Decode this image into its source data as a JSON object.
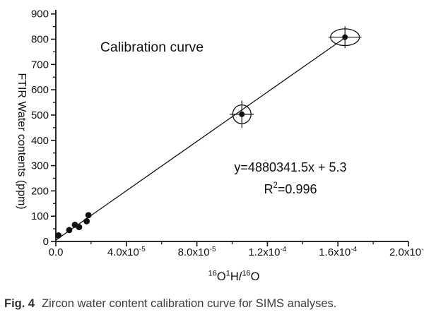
{
  "figure": {
    "caption_label": "Fig. 4",
    "caption_text": "Zircon water content calibration curve for SIMS analyses."
  },
  "chart_data": {
    "type": "scatter",
    "title": "Calibration curve",
    "ylabel": "FTIR Water contents (ppm)",
    "xlabel_parts": [
      {
        "t": "16",
        "sup": true
      },
      {
        "t": "O",
        "sup": false
      },
      {
        "t": "1",
        "sup": true
      },
      {
        "t": "H/",
        "sup": false
      },
      {
        "t": "16",
        "sup": true
      },
      {
        "t": "O",
        "sup": false
      }
    ],
    "xlim": [
      0,
      0.0002
    ],
    "ylim": [
      0,
      916
    ],
    "grid": false,
    "x_major_ticks": [
      {
        "v": 0.0,
        "mantissa": "0.0",
        "exp": ""
      },
      {
        "v": 4e-05,
        "mantissa": "4.0x10",
        "exp": "-5"
      },
      {
        "v": 8e-05,
        "mantissa": "8.0x10",
        "exp": "-5"
      },
      {
        "v": 0.00012,
        "mantissa": "1.2x10",
        "exp": "-4"
      },
      {
        "v": 0.00016,
        "mantissa": "1.6x10",
        "exp": "-4"
      },
      {
        "v": 0.0002,
        "mantissa": "2.0x10",
        "exp": "-4"
      }
    ],
    "x_minor_ticks": [
      2e-05,
      6e-05,
      0.0001,
      0.00014,
      0.00018
    ],
    "y_major_ticks": [
      0,
      100,
      200,
      300,
      400,
      500,
      600,
      700,
      800,
      900
    ],
    "y_minor_ticks": [
      50,
      150,
      250,
      350,
      450,
      550,
      650,
      750,
      850
    ],
    "points": [
      {
        "x": 1.5e-06,
        "y": 24
      },
      {
        "x": 7.6e-06,
        "y": 45
      },
      {
        "x": 1.08e-05,
        "y": 66
      },
      {
        "x": 1.32e-05,
        "y": 57
      },
      {
        "x": 1.75e-05,
        "y": 80
      },
      {
        "x": 1.85e-05,
        "y": 104
      }
    ],
    "circled_points": [
      {
        "x": 0.0001055,
        "y": 503,
        "ellipse_rx": 5.2e-06,
        "ellipse_ry": 37,
        "errbar_x": 6.8e-06,
        "errbar_y": 54
      },
      {
        "x": 0.000164,
        "y": 808,
        "ellipse_rx": 8.2e-06,
        "ellipse_ry": 33,
        "errbar_x": 9.4e-06,
        "errbar_y": 43
      }
    ],
    "fit_line": {
      "slope": 4880341.5,
      "intercept": 5.3,
      "x_start": 0,
      "x_end": 0.0001645
    },
    "equation_label": "y=4880341.5x + 5.3",
    "r2_label": {
      "pre": "R",
      "sup": "2",
      "post": "=0.996"
    },
    "colors": {
      "ink": "#111111",
      "caption": "#3d3d3d"
    }
  }
}
